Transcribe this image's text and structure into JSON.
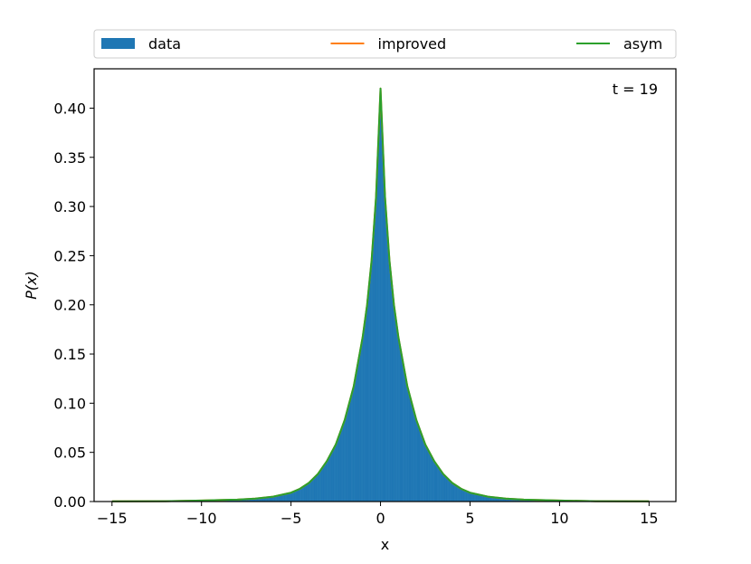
{
  "chart_data": {
    "type": "area",
    "title": "",
    "xlabel": "x",
    "ylabel": "P(x)",
    "xlim": [
      -16,
      16.5
    ],
    "ylim": [
      0,
      0.44
    ],
    "xticks": [
      -15,
      -10,
      -5,
      0,
      5,
      10,
      15
    ],
    "xtick_labels": [
      "−15",
      "−10",
      "−5",
      "0",
      "5",
      "10",
      "15"
    ],
    "yticks": [
      0.0,
      0.05,
      0.1,
      0.15,
      0.2,
      0.25,
      0.3,
      0.35,
      0.4
    ],
    "ytick_labels": [
      "0.00",
      "0.05",
      "0.10",
      "0.15",
      "0.20",
      "0.25",
      "0.30",
      "0.35",
      "0.40"
    ],
    "annotation": "t = 19",
    "grid": false,
    "legend_position": "top",
    "legend": [
      {
        "name": "data",
        "color": "#1f77b4",
        "kind": "patch"
      },
      {
        "name": "improved",
        "color": "#ff7f0e",
        "kind": "line"
      },
      {
        "name": "asym",
        "color": "#2ca02c",
        "kind": "line"
      }
    ],
    "series": [
      {
        "name": "data",
        "kind": "histogram",
        "color": "#1f77b4",
        "x": [
          -15,
          -12,
          -10,
          -8,
          -7,
          -6,
          -5,
          -4.5,
          -4,
          -3.5,
          -3,
          -2.5,
          -2,
          -1.5,
          -1,
          -0.75,
          -0.5,
          -0.25,
          0,
          0.25,
          0.5,
          0.75,
          1,
          1.5,
          2,
          2.5,
          3,
          3.5,
          4,
          4.5,
          5,
          6,
          7,
          8,
          10,
          12,
          15
        ],
        "y": [
          0.0002,
          0.0004,
          0.001,
          0.002,
          0.003,
          0.005,
          0.009,
          0.013,
          0.019,
          0.028,
          0.041,
          0.058,
          0.083,
          0.117,
          0.167,
          0.2,
          0.245,
          0.31,
          0.415,
          0.31,
          0.245,
          0.2,
          0.167,
          0.117,
          0.083,
          0.058,
          0.041,
          0.028,
          0.019,
          0.013,
          0.009,
          0.005,
          0.003,
          0.002,
          0.001,
          0.0004,
          0.0002
        ]
      },
      {
        "name": "improved",
        "kind": "line",
        "color": "#ff7f0e",
        "x": [
          -15,
          -12,
          -10,
          -8,
          -7,
          -6,
          -5,
          -4.5,
          -4,
          -3.5,
          -3,
          -2.5,
          -2,
          -1.5,
          -1,
          -0.75,
          -0.5,
          -0.25,
          0,
          0.25,
          0.5,
          0.75,
          1,
          1.5,
          2,
          2.5,
          3,
          3.5,
          4,
          4.5,
          5,
          6,
          7,
          8,
          10,
          12,
          15
        ],
        "y": [
          0.0002,
          0.0004,
          0.001,
          0.002,
          0.003,
          0.005,
          0.009,
          0.013,
          0.019,
          0.028,
          0.041,
          0.058,
          0.083,
          0.117,
          0.167,
          0.2,
          0.245,
          0.31,
          0.42,
          0.31,
          0.245,
          0.2,
          0.167,
          0.117,
          0.083,
          0.058,
          0.041,
          0.028,
          0.019,
          0.013,
          0.009,
          0.005,
          0.003,
          0.002,
          0.001,
          0.0004,
          0.0002
        ]
      },
      {
        "name": "asym",
        "kind": "line",
        "color": "#2ca02c",
        "x": [
          -15,
          -12,
          -10,
          -8,
          -7,
          -6,
          -5,
          -4.5,
          -4,
          -3.5,
          -3,
          -2.5,
          -2,
          -1.5,
          -1,
          -0.75,
          -0.5,
          -0.25,
          0,
          0.25,
          0.5,
          0.75,
          1,
          1.5,
          2,
          2.5,
          3,
          3.5,
          4,
          4.5,
          5,
          6,
          7,
          8,
          10,
          12,
          15
        ],
        "y": [
          0.0002,
          0.0004,
          0.001,
          0.002,
          0.003,
          0.005,
          0.009,
          0.013,
          0.019,
          0.028,
          0.041,
          0.058,
          0.083,
          0.117,
          0.167,
          0.2,
          0.245,
          0.31,
          0.42,
          0.31,
          0.245,
          0.2,
          0.167,
          0.117,
          0.083,
          0.058,
          0.041,
          0.028,
          0.019,
          0.013,
          0.009,
          0.005,
          0.003,
          0.002,
          0.001,
          0.0004,
          0.0002
        ]
      }
    ]
  }
}
